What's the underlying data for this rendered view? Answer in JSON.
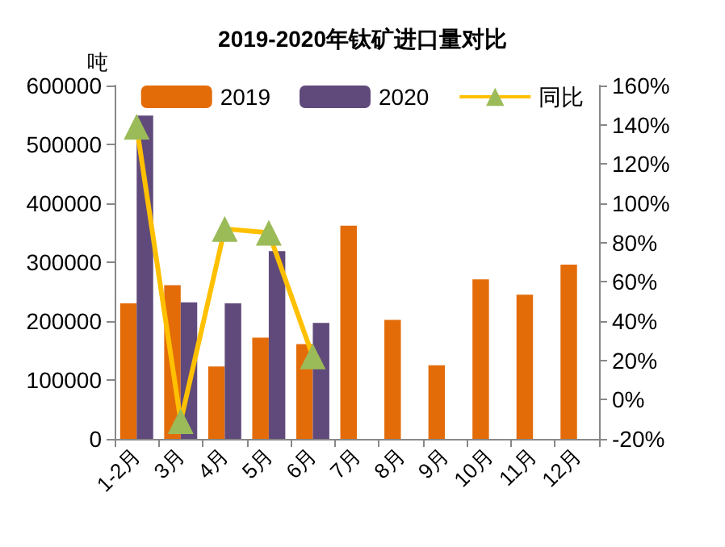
{
  "chart_data": {
    "type": "bar",
    "title": "2019-2020年钛矿进口量对比",
    "ylabel": "吨",
    "categories": [
      "1-2月",
      "3月",
      "4月",
      "5月",
      "6月",
      "7月",
      "8月",
      "9月",
      "10月",
      "11月",
      "12月"
    ],
    "series": [
      {
        "name": "2019",
        "color": "#e36c09",
        "values": [
          230000,
          261000,
          123000,
          172000,
          161000,
          362000,
          202000,
          125000,
          271000,
          245000,
          296000
        ]
      },
      {
        "name": "2020",
        "color": "#604a7b",
        "values": [
          549000,
          232000,
          230000,
          319000,
          197000,
          null,
          null,
          null,
          null,
          null,
          null
        ]
      },
      {
        "name": "同比",
        "type": "line",
        "axis": "y2",
        "color": "#ffc000",
        "marker": "triangle",
        "values": [
          139,
          -11,
          87,
          85,
          22,
          null,
          null,
          null,
          null,
          null,
          null
        ]
      }
    ],
    "ylim": [
      0,
      600000
    ],
    "yticks": [
      0,
      100000,
      200000,
      300000,
      400000,
      500000,
      600000
    ],
    "y2lim": [
      -20,
      160
    ],
    "y2ticks": [
      {
        "value": -20,
        "label": "-20%"
      },
      {
        "value": 0,
        "label": "0%"
      },
      {
        "value": 20,
        "label": "20%"
      },
      {
        "value": 40,
        "label": "40%"
      },
      {
        "value": 60,
        "label": "60%"
      },
      {
        "value": 80,
        "label": "80%"
      },
      {
        "value": 100,
        "label": "100%"
      },
      {
        "value": 120,
        "label": "120%"
      },
      {
        "value": 140,
        "label": "140%"
      },
      {
        "value": 160,
        "label": "160%"
      }
    ],
    "grid": false,
    "legend": "top"
  }
}
